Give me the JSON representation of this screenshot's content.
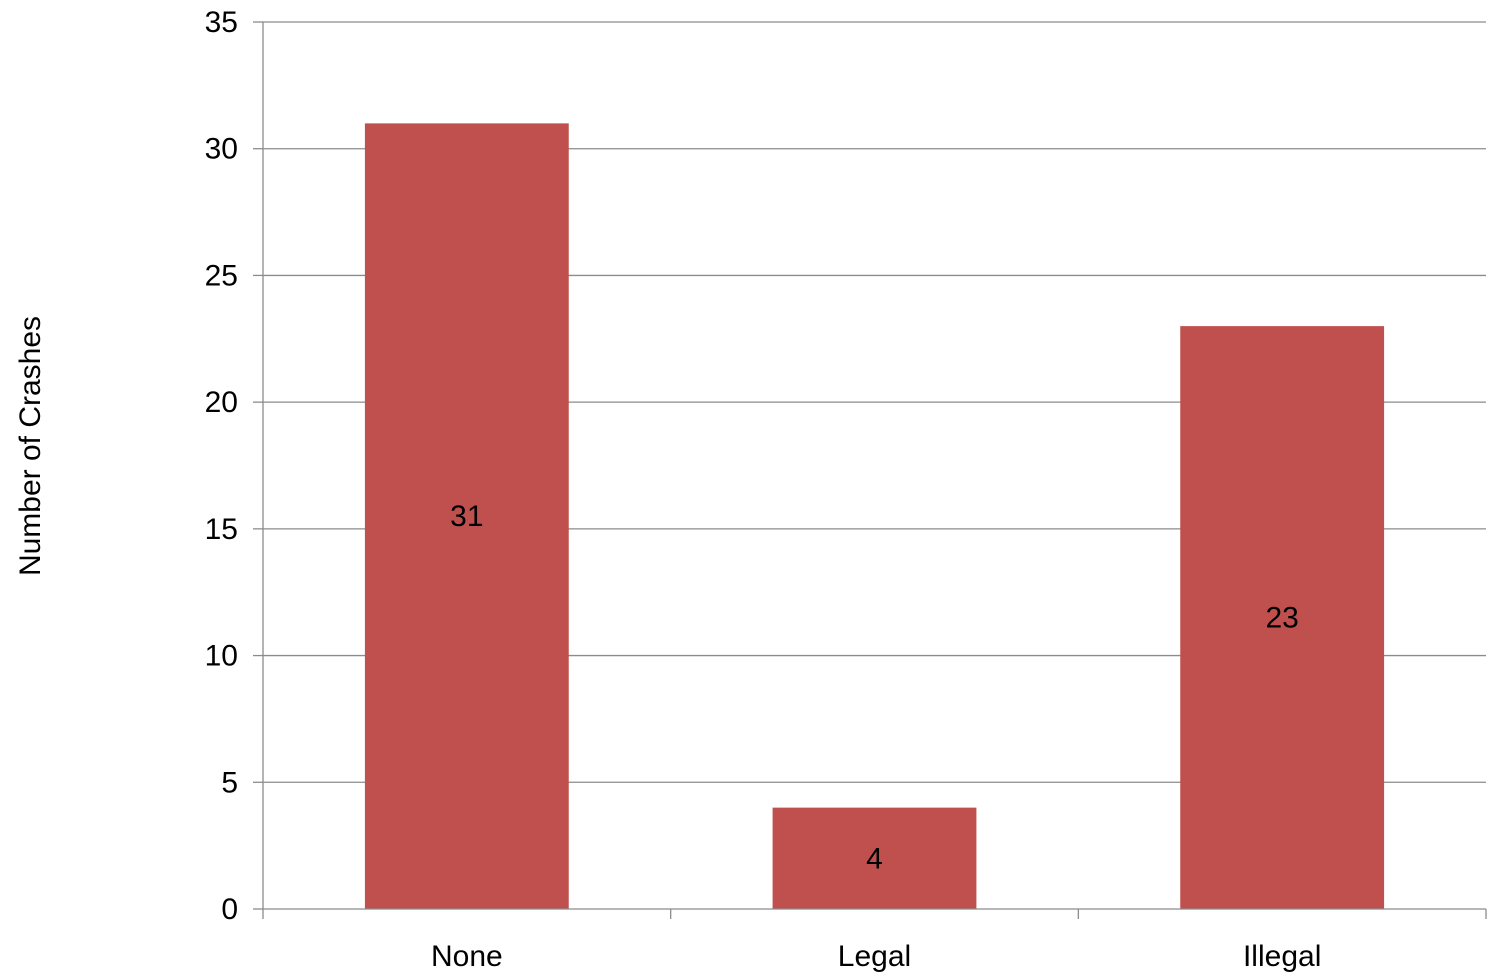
{
  "chart_data": {
    "type": "bar",
    "categories": [
      "None",
      "Legal",
      "Illegal"
    ],
    "series": [
      {
        "values": [
          31,
          4,
          23
        ],
        "color": "#C0504D"
      }
    ],
    "data_labels": [
      "31",
      "4",
      "23"
    ],
    "title": "",
    "xlabel": "",
    "ylabel": "Number of Crashes",
    "ylim": [
      0,
      35
    ],
    "yticks": [
      0,
      5,
      10,
      15,
      20,
      25,
      30,
      35
    ],
    "grid": true,
    "legend": "none",
    "colors": {
      "bar": "#C0504D",
      "grid": "#8C8C8C",
      "axis": "#8C8C8C"
    }
  }
}
